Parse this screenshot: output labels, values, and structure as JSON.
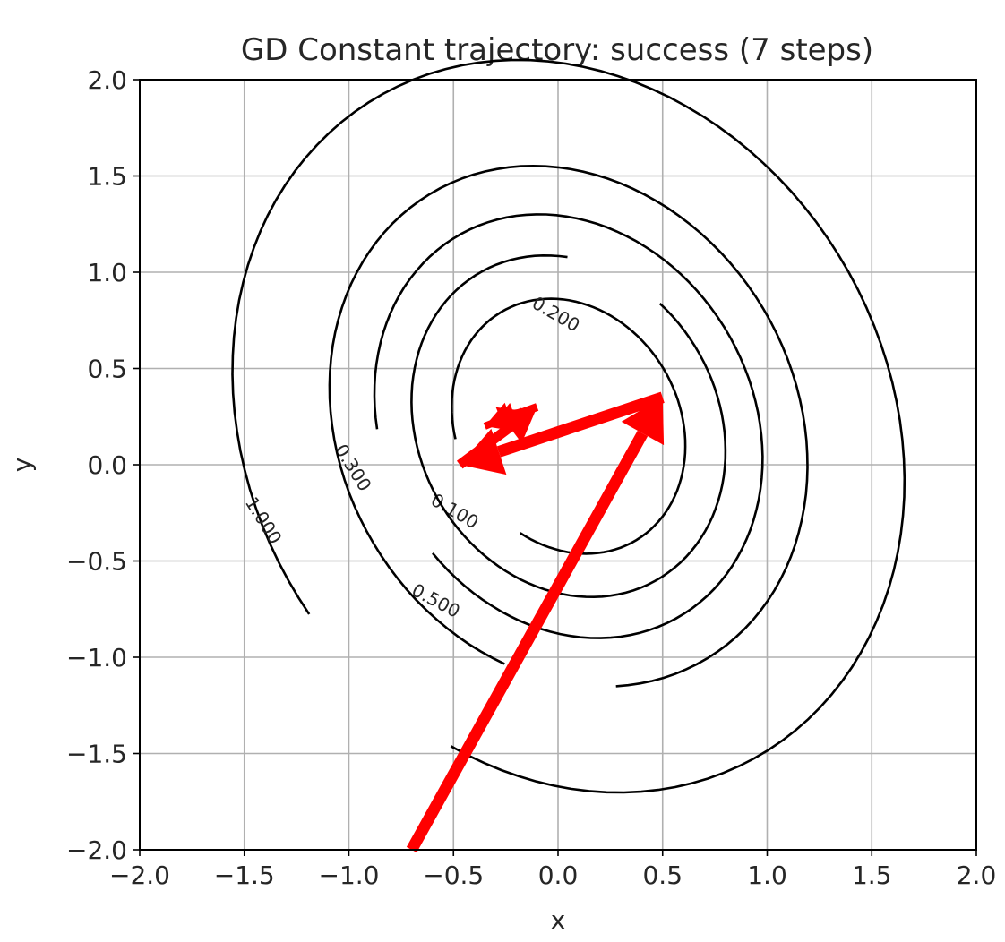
{
  "chart_data": {
    "type": "line",
    "title": "GD Constant trajectory: success (7 steps)",
    "xlabel": "x",
    "ylabel": "y",
    "xlim": [
      -2.0,
      2.0
    ],
    "ylim": [
      -2.0,
      2.0
    ],
    "xticks": [
      "−2.0",
      "−1.5",
      "−1.0",
      "−0.5",
      "0.0",
      "0.5",
      "1.0",
      "1.5",
      "2.0"
    ],
    "yticks": [
      "2.0",
      "1.5",
      "1.0",
      "0.5",
      "0.0",
      "−0.5",
      "−1.0",
      "−1.5",
      "−2.0"
    ],
    "grid": true,
    "contours": {
      "center": [
        0.05,
        0.2
      ],
      "levels": [
        {
          "label": "0.100"
        },
        {
          "label": "0.200"
        },
        {
          "label": "0.300"
        },
        {
          "label": "0.500"
        },
        {
          "label": "1.000"
        }
      ]
    },
    "trajectory": {
      "color": "#ff0000",
      "x": [
        -0.7,
        0.5,
        -0.47,
        -0.1,
        -0.35,
        -0.17,
        -0.3
      ],
      "y": [
        -2.0,
        0.35,
        0.0,
        0.3,
        0.2,
        0.28,
        0.23
      ]
    }
  }
}
